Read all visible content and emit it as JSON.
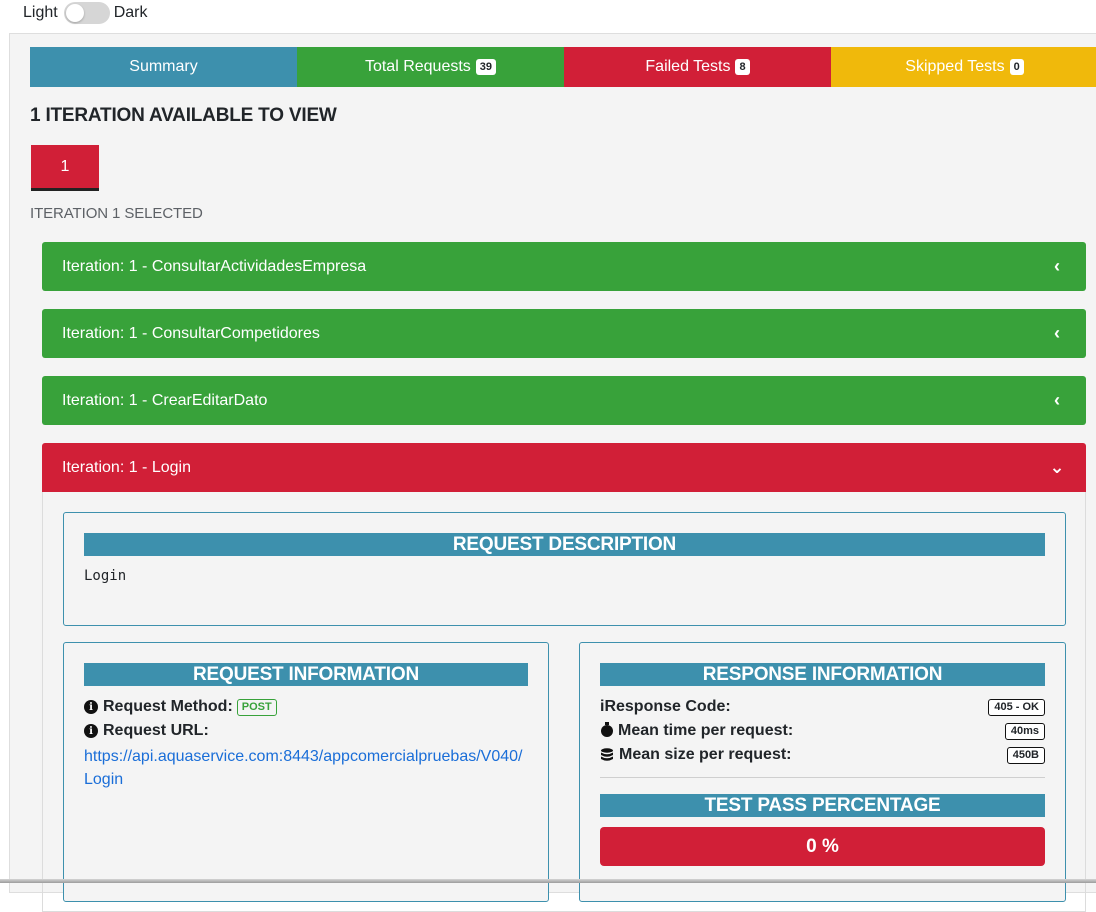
{
  "theme": {
    "light_label": "Light",
    "dark_label": "Dark"
  },
  "tabs": [
    {
      "label": "Summary",
      "count": null,
      "color": "#3d90ad"
    },
    {
      "label": "Total Requests",
      "count": "39",
      "color": "#38a23a"
    },
    {
      "label": "Failed Tests",
      "count": "8",
      "color": "#d11f37"
    },
    {
      "label": "Skipped Tests",
      "count": "0",
      "color": "#f0b90b"
    }
  ],
  "iterations": {
    "heading": "1 ITERATION AVAILABLE TO VIEW",
    "button_label": "1",
    "selected_text": "ITERATION 1 SELECTED"
  },
  "requests": [
    {
      "title": "Iteration: 1 - ConsultarActividadesEmpresa",
      "chevron": "‹",
      "color": "#38a23a"
    },
    {
      "title": "Iteration: 1 - ConsultarCompetidores",
      "chevron": "‹",
      "color": "#38a23a"
    },
    {
      "title": "Iteration: 1 - CrearEditarDato",
      "chevron": "‹",
      "color": "#38a23a"
    },
    {
      "title": "Iteration: 1 - Login",
      "chevron": "⌄",
      "color": "#d11f37"
    }
  ],
  "detail": {
    "description_title": "REQUEST DESCRIPTION",
    "description": "Login",
    "request_info_title": "REQUEST INFORMATION",
    "method_label": "Request Method:",
    "method": "POST",
    "url_label": "Request URL:",
    "url": "https://api.aquaservice.com:8443/appcomercialpruebas/V040/Login",
    "response_info_title": "RESPONSE INFORMATION",
    "response_code_label": "Response Code:",
    "response_code": "405 - OK",
    "mean_time_label": "Mean time per request:",
    "mean_time": "40ms",
    "mean_size_label": "Mean size per request:",
    "mean_size": "450B",
    "pass_title": "TEST PASS PERCENTAGE",
    "pass_percentage": "0 %"
  }
}
